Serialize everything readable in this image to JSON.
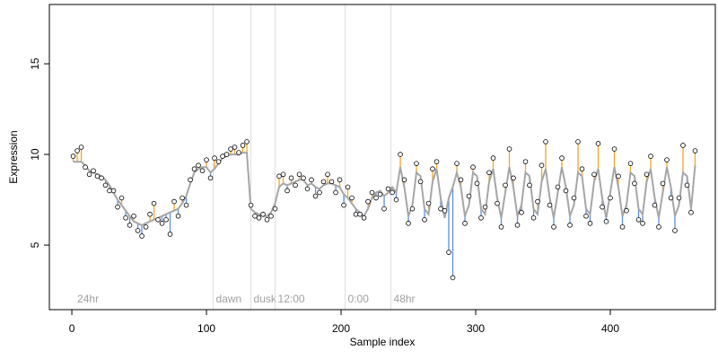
{
  "chart_data": {
    "type": "scatter",
    "x_label": "Sample index",
    "y_label": "Expression",
    "xlim": [
      -16.7,
      478
    ],
    "ylim": [
      1.44,
      18.27
    ],
    "xticks": [
      0,
      100,
      200,
      300,
      400
    ],
    "yticks": [
      5,
      10,
      15
    ],
    "x": [
      1,
      4,
      7,
      10,
      13,
      16,
      19,
      22,
      25,
      28,
      31,
      34,
      37,
      40,
      43,
      46,
      49,
      52,
      55,
      58,
      61,
      64,
      67,
      70,
      73,
      76,
      79,
      82,
      85,
      88,
      91,
      94,
      97,
      100,
      103,
      106,
      109,
      112,
      115,
      118,
      121,
      124,
      127,
      130,
      133,
      136,
      139,
      142,
      145,
      148,
      151,
      154,
      157,
      160,
      163,
      166,
      169,
      172,
      175,
      178,
      181,
      184,
      187,
      190,
      193,
      196,
      199,
      202,
      205,
      208,
      211,
      214,
      217,
      220,
      223,
      226,
      229,
      232,
      235,
      238,
      241,
      244,
      247,
      250,
      253,
      256,
      259,
      262,
      265,
      268,
      271,
      274,
      277,
      280,
      283,
      286,
      289,
      292,
      295,
      298,
      301,
      304,
      307,
      310,
      313,
      316,
      319,
      322,
      325,
      328,
      331,
      334,
      337,
      340,
      343,
      346,
      349,
      352,
      355,
      358,
      361,
      364,
      367,
      370,
      373,
      376,
      379,
      382,
      385,
      388,
      391,
      394,
      397,
      400,
      403,
      406,
      409,
      412,
      415,
      418,
      421,
      424,
      427,
      430,
      433,
      436,
      439,
      442,
      445,
      448,
      451,
      454,
      457,
      460,
      463
    ],
    "values": [
      9.9,
      10.2,
      10.4,
      9.3,
      8.9,
      9.1,
      8.8,
      8.7,
      8.3,
      8.0,
      8.0,
      7.1,
      7.6,
      6.5,
      6.1,
      6.6,
      5.8,
      5.5,
      6.0,
      6.7,
      7.3,
      6.4,
      6.2,
      6.4,
      5.6,
      7.4,
      6.6,
      7.6,
      7.2,
      8.6,
      9.2,
      9.4,
      9.1,
      9.7,
      8.7,
      9.8,
      9.6,
      9.9,
      10.0,
      10.3,
      10.4,
      10.1,
      10.5,
      10.7,
      7.2,
      6.6,
      6.5,
      6.7,
      6.4,
      6.6,
      7.0,
      8.8,
      8.9,
      8.0,
      8.7,
      8.3,
      8.9,
      8.7,
      8.1,
      8.6,
      7.7,
      7.9,
      8.5,
      8.9,
      8.5,
      7.9,
      8.6,
      7.2,
      8.2,
      7.6,
      6.7,
      6.7,
      6.5,
      7.4,
      7.9,
      7.6,
      7.8,
      7.0,
      8.1,
      7.9,
      7.5,
      10.0,
      8.6,
      6.2,
      7.0,
      9.5,
      8.5,
      6.4,
      7.3,
      9.2,
      9.6,
      7.0,
      6.9,
      4.6,
      3.2,
      9.5,
      8.6,
      6.2,
      7.7,
      9.3,
      8.4,
      6.5,
      7.1,
      9.0,
      9.8,
      7.3,
      6.0,
      8.3,
      10.3,
      8.7,
      6.1,
      6.8,
      9.6,
      8.3,
      6.5,
      7.4,
      9.4,
      10.7,
      7.2,
      6.0,
      8.2,
      9.8,
      8.0,
      6.1,
      7.6,
      10.7,
      9.2,
      6.6,
      6.2,
      8.9,
      10.6,
      7.1,
      6.3,
      7.6,
      10.3,
      8.8,
      6.0,
      6.9,
      9.5,
      8.4,
      6.4,
      6.2,
      8.9,
      9.9,
      7.2,
      6.0,
      8.4,
      9.7,
      7.6,
      5.8,
      7.6,
      10.5,
      8.3,
      6.8,
      10.2
    ],
    "fit": [
      9.6,
      9.6,
      9.6,
      9.4,
      9.1,
      9.0,
      8.9,
      8.8,
      8.6,
      8.3,
      7.9,
      7.5,
      7.2,
      6.9,
      6.6,
      6.3,
      6.2,
      6.1,
      6.2,
      6.3,
      6.4,
      6.5,
      6.6,
      6.7,
      6.8,
      6.9,
      7.0,
      7.3,
      7.7,
      8.4,
      9.0,
      9.2,
      9.3,
      9.3,
      9.0,
      9.2,
      9.5,
      9.8,
      9.9,
      10.0,
      10.0,
      10.0,
      10.1,
      10.1,
      7.0,
      6.8,
      6.7,
      6.6,
      6.6,
      6.8,
      7.3,
      8.2,
      8.4,
      8.3,
      8.4,
      8.5,
      8.6,
      8.6,
      8.3,
      8.4,
      8.2,
      8.1,
      8.3,
      8.4,
      8.4,
      8.3,
      8.2,
      7.8,
      7.6,
      7.3,
      7.0,
      6.8,
      6.6,
      7.0,
      7.6,
      7.9,
      8.0,
      7.7,
      7.9,
      8.2,
      7.9,
      9.3,
      8.2,
      6.6,
      7.2,
      9.0,
      8.8,
      7.0,
      6.7,
      8.5,
      9.2,
      7.6,
      6.5,
      7.6,
      8.2,
      9.0,
      8.2,
      6.6,
      7.2,
      9.0,
      8.8,
      7.0,
      6.7,
      8.5,
      9.2,
      7.6,
      6.5,
      7.9,
      9.3,
      8.2,
      6.6,
      7.2,
      9.0,
      8.8,
      7.0,
      6.7,
      8.5,
      9.2,
      7.6,
      6.5,
      7.9,
      9.3,
      8.2,
      6.6,
      7.2,
      9.0,
      8.8,
      7.0,
      6.7,
      8.5,
      9.2,
      7.6,
      6.5,
      7.9,
      9.3,
      8.2,
      6.6,
      7.2,
      9.0,
      8.8,
      7.0,
      6.7,
      8.5,
      9.2,
      7.6,
      6.5,
      7.9,
      9.3,
      8.2,
      6.6,
      7.2,
      9.0,
      8.8,
      7.0,
      9.4
    ],
    "colors": {
      "point_fill": "#ffffff",
      "point_stroke": "#000000",
      "fit": "#a6a6a6",
      "above": "#f5a623",
      "below": "#5b8fe0",
      "rule": "#dddddd",
      "annotation": "#a0a0a0"
    },
    "annotations": [
      {
        "x": 2,
        "label": "24hr",
        "rule": false
      },
      {
        "x": 105,
        "label": "dawn",
        "rule": true
      },
      {
        "x": 133,
        "label": "dusk",
        "rule": true
      },
      {
        "x": 151,
        "label": "12:00",
        "rule": true
      },
      {
        "x": 203,
        "label": "0:00",
        "rule": true
      },
      {
        "x": 237,
        "label": "48hr",
        "rule": true
      }
    ]
  }
}
